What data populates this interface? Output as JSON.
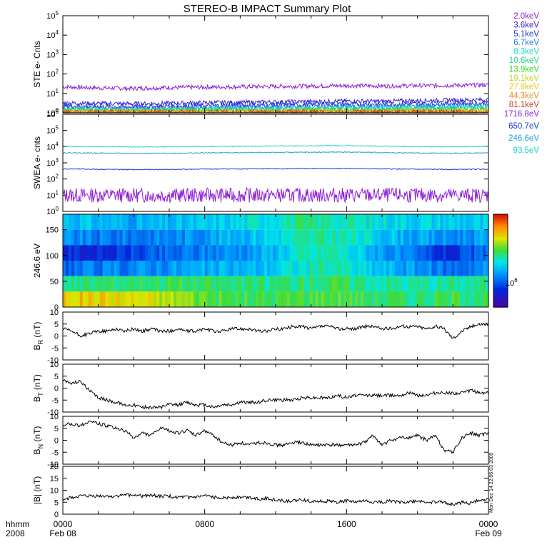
{
  "title": "STEREO-B IMPACT Summary Plot",
  "time_axis": {
    "row_label": "hhmm",
    "year_label": "2008",
    "ticks": [
      {
        "time": "0000",
        "date": "Feb 08"
      },
      {
        "time": "0800",
        "date": ""
      },
      {
        "time": "1600",
        "date": ""
      },
      {
        "time": "0000",
        "date": "Feb 09"
      }
    ]
  },
  "timestamp": "Mon Dec 14 22:06:03 2009",
  "chart_data": [
    {
      "id": "ste",
      "type": "line",
      "ylabel": "STE e- Cnts",
      "yscale": "log",
      "ylim": [
        1,
        100000
      ],
      "yticks": [
        {
          "base": "10",
          "exp": "5"
        },
        {
          "base": "10",
          "exp": "4"
        },
        {
          "base": "10",
          "exp": "3"
        },
        {
          "base": "10",
          "exp": "2"
        },
        {
          "base": "10",
          "exp": "1"
        },
        {
          "base": "10",
          "exp": "0"
        }
      ],
      "x_range_hours": [
        0,
        24
      ],
      "series": [
        {
          "name": "2.0keV",
          "color": "#8e1fd6",
          "values": [
            22,
            19,
            18,
            20,
            21,
            22,
            23,
            24,
            25,
            24,
            25,
            26,
            27
          ]
        },
        {
          "name": "3.6keV",
          "color": "#3a1fd6",
          "values": [
            3.2,
            3.0,
            2.9,
            3.1,
            3.3,
            3.4,
            3.6,
            3.8,
            4.0,
            3.9,
            4.2,
            4.5,
            4.7
          ]
        },
        {
          "name": "5.1keV",
          "color": "#1f3ad6",
          "values": [
            2.3,
            2.1,
            2.0,
            2.2,
            2.3,
            2.4,
            2.5,
            2.6,
            2.8,
            2.7,
            2.9,
            3.0,
            3.1
          ]
        },
        {
          "name": "6.7keV",
          "color": "#1f8ee6",
          "values": [
            1.8,
            1.7,
            1.6,
            1.7,
            1.8,
            1.9,
            1.9,
            2.0,
            2.1,
            2.0,
            2.2,
            2.3,
            2.4
          ]
        },
        {
          "name": "8.3keV",
          "color": "#1fd6c8",
          "values": [
            1.5,
            1.4,
            1.4,
            1.5,
            1.5,
            1.6,
            1.6,
            1.7,
            1.7,
            1.7,
            1.8,
            1.8,
            1.9
          ]
        },
        {
          "name": "10.6keV",
          "color": "#1fd680",
          "values": [
            1.3,
            1.3,
            1.2,
            1.3,
            1.3,
            1.3,
            1.4,
            1.4,
            1.4,
            1.4,
            1.5,
            1.5,
            1.5
          ]
        },
        {
          "name": "13.9keV",
          "color": "#2fd61f",
          "values": [
            1.2,
            1.2,
            1.1,
            1.2,
            1.2,
            1.2,
            1.2,
            1.3,
            1.3,
            1.3,
            1.3,
            1.3,
            1.4
          ]
        },
        {
          "name": "19.1keV",
          "color": "#b8d61f",
          "values": [
            1.1,
            1.1,
            1.1,
            1.1,
            1.1,
            1.1,
            1.1,
            1.2,
            1.2,
            1.2,
            1.2,
            1.2,
            1.2
          ]
        },
        {
          "name": "27.8keV",
          "color": "#e6c81f",
          "values": [
            1.05,
            1.05,
            1.05,
            1.05,
            1.05,
            1.05,
            1.1,
            1.1,
            1.1,
            1.1,
            1.1,
            1.1,
            1.1
          ]
        },
        {
          "name": "44.3keV",
          "color": "#e68e1f",
          "values": [
            1,
            1,
            1,
            1,
            1,
            1,
            1,
            1,
            1,
            1,
            1,
            1,
            1
          ]
        },
        {
          "name": "81.1keV",
          "color": "#d63a1f",
          "values": [
            1,
            1,
            1,
            1,
            1,
            1,
            1,
            1,
            1,
            1,
            1,
            1,
            1
          ]
        }
      ]
    },
    {
      "id": "swea",
      "type": "line",
      "ylabel": "SWEA e- cnts",
      "yscale": "log",
      "ylim": [
        1,
        1000000
      ],
      "yticks": [
        {
          "base": "10",
          "exp": "6"
        },
        {
          "base": "10",
          "exp": "5"
        },
        {
          "base": "10",
          "exp": "4"
        },
        {
          "base": "10",
          "exp": "3"
        },
        {
          "base": "10",
          "exp": "2"
        },
        {
          "base": "10",
          "exp": "1"
        },
        {
          "base": "10",
          "exp": "0"
        }
      ],
      "x_range_hours": [
        0,
        24
      ],
      "series": [
        {
          "name": "1716.8eV",
          "color": "#8e1fd6",
          "values": [
            10,
            10,
            10,
            10,
            10,
            10,
            10,
            10,
            10,
            10,
            10,
            10,
            10
          ]
        },
        {
          "name": "650.7eV",
          "color": "#1f3ad6",
          "values": [
            420,
            400,
            380,
            390,
            410,
            420,
            430,
            440,
            450,
            420,
            400,
            390,
            410
          ]
        },
        {
          "name": "246.6eV",
          "color": "#1f9ee6",
          "values": [
            4200,
            4000,
            3800,
            3900,
            4100,
            4300,
            4400,
            4500,
            4600,
            4300,
            4000,
            3900,
            4100
          ]
        },
        {
          "name": "93.5eV",
          "color": "#1fd6c8",
          "values": [
            10500,
            10000,
            9500,
            9800,
            10200,
            10600,
            11000,
            11200,
            11500,
            10800,
            10000,
            9800,
            10300
          ]
        }
      ]
    },
    {
      "id": "pad",
      "type": "heatmap",
      "ylabel": "246.6 eV",
      "ylim": [
        0,
        180
      ],
      "yticks": [
        "0",
        "50",
        "100",
        "150"
      ],
      "x_range_hours": [
        0,
        24
      ],
      "colorbar_label": "10",
      "colorbar_exp": "6",
      "description_rows": [
        {
          "pitch": 165,
          "levels": [
            0.45,
            0.42,
            0.4,
            0.42,
            0.45,
            0.5,
            0.55,
            0.55,
            0.5,
            0.48,
            0.46,
            0.44
          ]
        },
        {
          "pitch": 135,
          "levels": [
            0.35,
            0.32,
            0.33,
            0.35,
            0.4,
            0.45,
            0.52,
            0.55,
            0.48,
            0.4,
            0.35,
            0.38
          ]
        },
        {
          "pitch": 105,
          "levels": [
            0.2,
            0.18,
            0.25,
            0.3,
            0.35,
            0.38,
            0.5,
            0.55,
            0.42,
            0.3,
            0.18,
            0.3
          ]
        },
        {
          "pitch": 75,
          "levels": [
            0.3,
            0.32,
            0.35,
            0.38,
            0.4,
            0.42,
            0.5,
            0.55,
            0.45,
            0.38,
            0.3,
            0.36
          ]
        },
        {
          "pitch": 45,
          "levels": [
            0.55,
            0.58,
            0.6,
            0.6,
            0.58,
            0.56,
            0.58,
            0.6,
            0.56,
            0.54,
            0.55,
            0.56
          ]
        },
        {
          "pitch": 15,
          "levels": [
            0.8,
            0.78,
            0.75,
            0.7,
            0.62,
            0.6,
            0.62,
            0.64,
            0.6,
            0.58,
            0.6,
            0.6
          ]
        }
      ]
    },
    {
      "id": "br",
      "type": "line",
      "ylabel_main": "B",
      "ylabel_sub": "R",
      "ylabel_unit": "(nT)",
      "ylim": [
        -10,
        10
      ],
      "yticks": [
        "10",
        "5",
        "0",
        "-5",
        "-10"
      ],
      "x_range_hours": [
        0,
        24
      ],
      "x": [
        0,
        0.5,
        1,
        1.5,
        2,
        2.5,
        3,
        3.5,
        4,
        4.5,
        5,
        5.5,
        6,
        6.5,
        7,
        7.5,
        8,
        8.5,
        9,
        9.5,
        10,
        10.5,
        11,
        11.5,
        12,
        12.5,
        13,
        13.5,
        14,
        14.5,
        15,
        15.5,
        16,
        16.5,
        17,
        17.5,
        18,
        18.5,
        19,
        19.5,
        20,
        20.5,
        21,
        21.5,
        22,
        22.5,
        23,
        23.5,
        24
      ],
      "y": [
        3,
        2,
        0,
        1,
        2,
        2,
        3,
        2,
        3,
        2,
        3,
        2,
        2,
        3,
        2,
        2,
        3,
        2,
        2,
        3,
        3,
        3,
        2,
        2,
        3,
        3,
        4,
        4,
        3,
        4,
        4,
        3,
        3,
        3,
        4,
        4,
        3,
        3,
        4,
        4,
        4,
        3,
        4,
        3,
        -1,
        2,
        4,
        5,
        5
      ]
    },
    {
      "id": "bt",
      "type": "line",
      "ylabel_main": "B",
      "ylabel_sub": "T",
      "ylabel_unit": "(nT)",
      "ylim": [
        -10,
        10
      ],
      "yticks": [
        "10",
        "5",
        "0",
        "-5",
        "-10"
      ],
      "x_range_hours": [
        0,
        24
      ],
      "x": [
        0,
        0.5,
        1,
        1.5,
        2,
        2.5,
        3,
        3.5,
        4,
        4.5,
        5,
        5.5,
        6,
        6.5,
        7,
        7.5,
        8,
        8.5,
        9,
        9.5,
        10,
        10.5,
        11,
        11.5,
        12,
        12.5,
        13,
        13.5,
        14,
        14.5,
        15,
        15.5,
        16,
        16.5,
        17,
        17.5,
        18,
        18.5,
        19,
        19.5,
        20,
        20.5,
        21,
        21.5,
        22,
        22.5,
        23,
        23.5,
        24
      ],
      "y": [
        3,
        2,
        3,
        -1,
        -4,
        -5,
        -6,
        -7,
        -7,
        -8,
        -8,
        -8,
        -7,
        -7,
        -6,
        -7,
        -7,
        -8,
        -7,
        -7,
        -6,
        -6,
        -6,
        -5,
        -5,
        -5,
        -5,
        -4,
        -4,
        -4,
        -4,
        -3,
        -4,
        -3,
        -3,
        -3,
        -3,
        -3,
        -3,
        -2,
        -3,
        -3,
        -2,
        -2,
        -2,
        -2,
        -1,
        -2,
        -2
      ]
    },
    {
      "id": "bn",
      "type": "line",
      "ylabel_main": "B",
      "ylabel_sub": "N",
      "ylabel_unit": "(nT)",
      "ylim": [
        -10,
        10
      ],
      "yticks": [
        "10",
        "5",
        "0",
        "-5",
        "-10"
      ],
      "x_range_hours": [
        0,
        24
      ],
      "x": [
        0,
        0.5,
        1,
        1.5,
        2,
        2.5,
        3,
        3.5,
        4,
        4.5,
        5,
        5.5,
        6,
        6.5,
        7,
        7.5,
        8,
        8.5,
        9,
        9.5,
        10,
        10.5,
        11,
        11.5,
        12,
        12.5,
        13,
        13.5,
        14,
        14.5,
        15,
        15.5,
        16,
        16.5,
        17,
        17.5,
        18,
        18.5,
        19,
        19.5,
        20,
        20.5,
        21,
        21.5,
        22,
        22.5,
        23,
        23.5,
        24
      ],
      "y": [
        6,
        7,
        6,
        8,
        7,
        6,
        5,
        4,
        1,
        3,
        2,
        5,
        4,
        3,
        4,
        2,
        4,
        2,
        -1,
        -2,
        -1,
        -2,
        -1,
        -1,
        -2,
        -2,
        -1,
        -1,
        -2,
        -2,
        -2,
        -2,
        -2,
        -2,
        -1,
        2,
        -2,
        0,
        1,
        1,
        2,
        0,
        2,
        -4,
        -5,
        1,
        3,
        2,
        3
      ]
    },
    {
      "id": "bmag",
      "type": "line",
      "ylabel_main": "|B|",
      "ylabel_sub": "",
      "ylabel_unit": "(nT)",
      "ylim": [
        0,
        20
      ],
      "yticks": [
        "20",
        "15",
        "10",
        "5",
        "0"
      ],
      "x_range_hours": [
        0,
        24
      ],
      "x": [
        0,
        0.5,
        1,
        1.5,
        2,
        2.5,
        3,
        3.5,
        4,
        4.5,
        5,
        5.5,
        6,
        6.5,
        7,
        7.5,
        8,
        8.5,
        9,
        9.5,
        10,
        10.5,
        11,
        11.5,
        12,
        12.5,
        13,
        13.5,
        14,
        14.5,
        15,
        15.5,
        16,
        16.5,
        17,
        17.5,
        18,
        18.5,
        19,
        19.5,
        20,
        20.5,
        21,
        21.5,
        22,
        22.5,
        23,
        23.5,
        24
      ],
      "y": [
        6,
        7,
        7.5,
        7.5,
        7.5,
        7.5,
        7.5,
        8,
        8,
        7.5,
        8,
        7.5,
        7.5,
        7,
        7,
        7,
        7.5,
        7,
        7,
        7,
        7,
        7,
        6.5,
        6.5,
        6,
        5.5,
        5.5,
        6,
        5.5,
        5.5,
        5.5,
        5,
        5.5,
        5,
        5.5,
        5,
        5,
        5.5,
        5,
        5,
        5.5,
        5,
        5,
        5,
        4,
        5,
        4.5,
        6,
        6
      ]
    }
  ]
}
